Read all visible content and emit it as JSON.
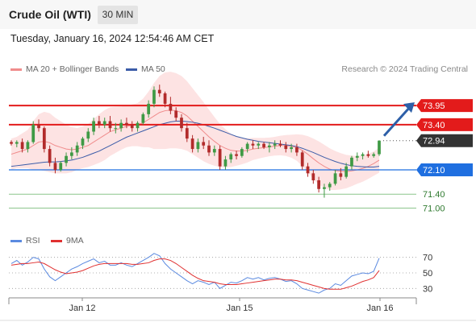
{
  "header": {
    "title": "Crude Oil (WTI)",
    "timeframe": "30 MIN"
  },
  "datetime": "Tuesday, January 16, 2024 12:54:46 AM CET",
  "legend": {
    "ma20": {
      "label": "MA 20 + Bollinger Bands",
      "color": "#f08c8c"
    },
    "ma50": {
      "label": "MA 50",
      "color": "#3b5ca8"
    },
    "rsi": {
      "label": "RSI",
      "color": "#5b8ae0"
    },
    "rsi_ma": {
      "label": "9MA",
      "color": "#e03030"
    }
  },
  "credit": "Research © 2024 Trading Central",
  "chart_data": {
    "type": "candlestick",
    "price_range": [
      70.85,
      74.6
    ],
    "levels": [
      {
        "value": 73.95,
        "label": "73.95",
        "kind": "resistance",
        "color": "#e31b1b"
      },
      {
        "value": 73.4,
        "label": "73.40",
        "kind": "resistance",
        "color": "#e31b1b"
      },
      {
        "value": 72.94,
        "label": "72.94",
        "kind": "last-price",
        "color": "#333333"
      },
      {
        "value": 72.1,
        "label": "72.10",
        "kind": "pivot",
        "color": "#1f6fe0"
      },
      {
        "value": 71.4,
        "label": "71.40",
        "kind": "support",
        "color": "#3a9a3a"
      },
      {
        "value": 71.0,
        "label": "71.00",
        "kind": "support",
        "color": "#3a9a3a"
      }
    ],
    "x_labels": [
      "Jan 12",
      "Jan 15",
      "Jan 16"
    ],
    "rsi_ticks": [
      70,
      50,
      30
    ],
    "candles": [
      [
        72.9,
        72.95,
        72.8,
        72.85
      ],
      [
        72.85,
        72.95,
        72.75,
        72.9
      ],
      [
        72.9,
        73.0,
        72.6,
        72.7
      ],
      [
        72.7,
        72.95,
        72.6,
        72.9
      ],
      [
        72.9,
        73.5,
        72.85,
        73.4
      ],
      [
        73.4,
        73.55,
        73.2,
        73.3
      ],
      [
        73.3,
        73.35,
        72.6,
        72.7
      ],
      [
        72.7,
        72.8,
        72.2,
        72.3
      ],
      [
        72.3,
        72.45,
        72.0,
        72.1
      ],
      [
        72.1,
        72.35,
        72.05,
        72.3
      ],
      [
        72.3,
        72.6,
        72.2,
        72.5
      ],
      [
        72.5,
        72.75,
        72.4,
        72.6
      ],
      [
        72.6,
        72.9,
        72.5,
        72.8
      ],
      [
        72.8,
        73.05,
        72.7,
        73.0
      ],
      [
        73.0,
        73.3,
        72.9,
        73.2
      ],
      [
        73.2,
        73.6,
        73.1,
        73.5
      ],
      [
        73.5,
        73.65,
        73.3,
        73.4
      ],
      [
        73.4,
        73.6,
        73.3,
        73.5
      ],
      [
        73.5,
        73.65,
        73.2,
        73.3
      ],
      [
        73.3,
        73.45,
        73.15,
        73.3
      ],
      [
        73.3,
        73.55,
        73.2,
        73.45
      ],
      [
        73.45,
        73.6,
        73.3,
        73.4
      ],
      [
        73.4,
        73.5,
        73.2,
        73.3
      ],
      [
        73.3,
        73.5,
        73.2,
        73.45
      ],
      [
        73.45,
        73.75,
        73.4,
        73.7
      ],
      [
        73.7,
        74.1,
        73.6,
        74.0
      ],
      [
        74.0,
        74.5,
        73.9,
        74.4
      ],
      [
        74.4,
        74.55,
        74.2,
        74.3
      ],
      [
        74.3,
        74.35,
        73.9,
        74.0
      ],
      [
        74.0,
        74.2,
        73.7,
        73.8
      ],
      [
        73.8,
        73.9,
        73.5,
        73.6
      ],
      [
        73.6,
        73.7,
        73.2,
        73.3
      ],
      [
        73.3,
        73.45,
        72.9,
        73.0
      ],
      [
        73.0,
        73.1,
        72.6,
        72.7
      ],
      [
        72.7,
        73.0,
        72.6,
        72.9
      ],
      [
        72.9,
        73.05,
        72.7,
        72.8
      ],
      [
        72.8,
        72.95,
        72.5,
        72.6
      ],
      [
        72.6,
        72.8,
        72.5,
        72.7
      ],
      [
        72.7,
        72.8,
        72.1,
        72.2
      ],
      [
        72.2,
        72.5,
        72.1,
        72.4
      ],
      [
        72.4,
        72.6,
        72.3,
        72.55
      ],
      [
        72.55,
        72.65,
        72.4,
        72.5
      ],
      [
        72.5,
        72.75,
        72.45,
        72.7
      ],
      [
        72.7,
        72.9,
        72.6,
        72.85
      ],
      [
        72.85,
        72.95,
        72.7,
        72.8
      ],
      [
        72.8,
        72.9,
        72.7,
        72.85
      ],
      [
        72.85,
        72.9,
        72.7,
        72.75
      ],
      [
        72.75,
        72.9,
        72.6,
        72.8
      ],
      [
        72.8,
        72.95,
        72.7,
        72.85
      ],
      [
        72.85,
        72.95,
        72.75,
        72.8
      ],
      [
        72.8,
        72.9,
        72.6,
        72.7
      ],
      [
        72.7,
        72.85,
        72.6,
        72.75
      ],
      [
        72.75,
        72.85,
        72.5,
        72.6
      ],
      [
        72.6,
        72.65,
        72.1,
        72.2
      ],
      [
        72.2,
        72.3,
        71.9,
        72.0
      ],
      [
        72.0,
        72.1,
        71.7,
        71.8
      ],
      [
        71.8,
        71.9,
        71.45,
        71.55
      ],
      [
        71.55,
        71.7,
        71.3,
        71.6
      ],
      [
        71.6,
        71.75,
        71.5,
        71.7
      ],
      [
        71.7,
        72.1,
        71.65,
        72.0
      ],
      [
        72.0,
        72.15,
        71.8,
        71.9
      ],
      [
        71.9,
        72.3,
        71.85,
        72.2
      ],
      [
        72.2,
        72.5,
        72.1,
        72.45
      ],
      [
        72.45,
        72.6,
        72.35,
        72.5
      ],
      [
        72.5,
        72.6,
        72.4,
        72.55
      ],
      [
        72.55,
        72.65,
        72.45,
        72.5
      ],
      [
        72.5,
        72.6,
        72.45,
        72.55
      ],
      [
        72.55,
        72.95,
        72.5,
        72.94
      ]
    ],
    "rsi": [
      62,
      66,
      60,
      64,
      70,
      68,
      55,
      45,
      40,
      45,
      50,
      55,
      58,
      62,
      65,
      68,
      63,
      65,
      60,
      60,
      63,
      60,
      58,
      62,
      66,
      70,
      75,
      72,
      62,
      55,
      50,
      45,
      40,
      36,
      40,
      38,
      35,
      38,
      30,
      34,
      38,
      37,
      40,
      44,
      42,
      44,
      41,
      43,
      44,
      42,
      39,
      40,
      36,
      30,
      28,
      26,
      24,
      28,
      30,
      36,
      34,
      40,
      46,
      48,
      50,
      49,
      52,
      69
    ],
    "rsi_ma": [
      60,
      61,
      62,
      62,
      63,
      64,
      62,
      58,
      54,
      51,
      49,
      50,
      51,
      53,
      56,
      59,
      61,
      62,
      62,
      62,
      62,
      62,
      61,
      61,
      62,
      63,
      66,
      68,
      68,
      66,
      62,
      57,
      52,
      47,
      43,
      40,
      39,
      38,
      36,
      35,
      35,
      35,
      36,
      37,
      38,
      39,
      40,
      41,
      42,
      42,
      41,
      41,
      40,
      38,
      36,
      34,
      32,
      30,
      29,
      29,
      29,
      31,
      33,
      36,
      39,
      41,
      44,
      53
    ],
    "ma20": [
      72.55,
      72.6,
      72.65,
      72.7,
      72.8,
      72.9,
      72.92,
      72.88,
      72.8,
      72.75,
      72.7,
      72.68,
      72.7,
      72.75,
      72.8,
      72.9,
      73.0,
      73.1,
      73.2,
      73.25,
      73.3,
      73.35,
      73.38,
      73.4,
      73.45,
      73.55,
      73.65,
      73.75,
      73.8,
      73.82,
      73.8,
      73.75,
      73.65,
      73.5,
      73.35,
      73.2,
      73.05,
      72.92,
      72.8,
      72.72,
      72.66,
      72.64,
      72.64,
      72.66,
      72.7,
      72.72,
      72.74,
      72.76,
      72.78,
      72.8,
      72.8,
      72.78,
      72.74,
      72.66,
      72.55,
      72.42,
      72.3,
      72.2,
      72.12,
      72.08,
      72.06,
      72.05,
      72.07,
      72.1,
      72.14,
      72.2,
      72.28,
      72.38
    ],
    "ma50": [
      72.2,
      72.22,
      72.24,
      72.26,
      72.28,
      72.3,
      72.32,
      72.33,
      72.33,
      72.34,
      72.36,
      72.38,
      72.42,
      72.46,
      72.52,
      72.58,
      72.64,
      72.72,
      72.8,
      72.88,
      72.96,
      73.04,
      73.1,
      73.16,
      73.22,
      73.28,
      73.34,
      73.4,
      73.44,
      73.48,
      73.5,
      73.5,
      73.49,
      73.47,
      73.44,
      73.4,
      73.35,
      73.3,
      73.24,
      73.18,
      73.12,
      73.06,
      73.02,
      72.98,
      72.95,
      72.92,
      72.9,
      72.88,
      72.86,
      72.84,
      72.82,
      72.8,
      72.77,
      72.72,
      72.66,
      72.6,
      72.53,
      72.46,
      72.4,
      72.34,
      72.29,
      72.25,
      72.22,
      72.2,
      72.19,
      72.18,
      72.18,
      72.2
    ],
    "bb_width": [
      0.45,
      0.45,
      0.5,
      0.55,
      0.7,
      0.8,
      0.85,
      0.85,
      0.8,
      0.75,
      0.7,
      0.65,
      0.6,
      0.6,
      0.62,
      0.66,
      0.7,
      0.72,
      0.7,
      0.66,
      0.62,
      0.6,
      0.6,
      0.62,
      0.7,
      0.8,
      0.95,
      1.05,
      1.1,
      1.1,
      1.08,
      1.05,
      1.0,
      0.95,
      0.9,
      0.85,
      0.78,
      0.7,
      0.62,
      0.55,
      0.48,
      0.42,
      0.38,
      0.35,
      0.32,
      0.3,
      0.28,
      0.27,
      0.27,
      0.28,
      0.3,
      0.33,
      0.38,
      0.45,
      0.52,
      0.58,
      0.62,
      0.62,
      0.6,
      0.56,
      0.52,
      0.48,
      0.44,
      0.4,
      0.38,
      0.36,
      0.35,
      0.36
    ]
  }
}
